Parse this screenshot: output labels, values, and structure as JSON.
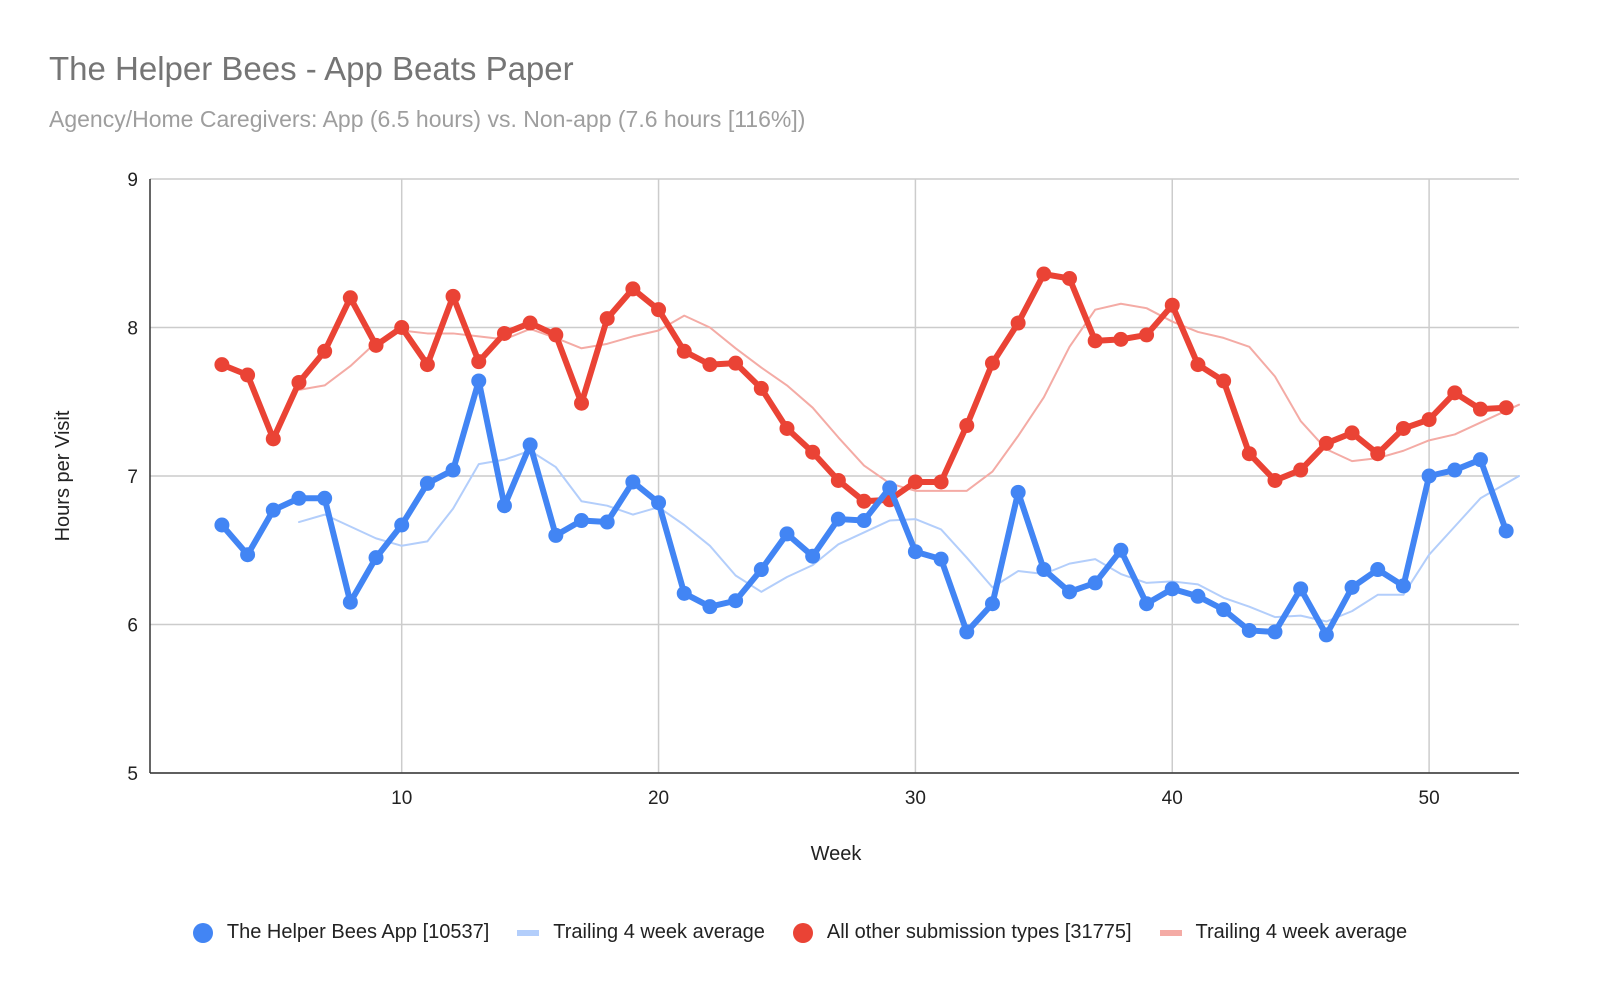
{
  "chart_data": {
    "type": "line",
    "title": "The Helper Bees - App Beats Paper",
    "subtitle": "Agency/Home Caregivers: App (6.5 hours) vs. Non-app (7.6 hours [116%])",
    "xlabel": "Week",
    "ylabel": "Hours per Visit",
    "xlim": [
      0.2,
      53.5
    ],
    "ylim": [
      5,
      9
    ],
    "x_ticks": [
      10,
      20,
      30,
      40,
      50
    ],
    "y_ticks": [
      5,
      6,
      7,
      8,
      9
    ],
    "grid": true,
    "legend_position": "bottom",
    "series": [
      {
        "name": "The Helper Bees App [10537]",
        "color": "#4285f4",
        "style": "line-markers",
        "x": [
          3,
          4,
          5,
          6,
          7,
          8,
          9,
          10,
          11,
          12,
          13,
          14,
          15,
          16,
          17,
          18,
          19,
          20,
          21,
          22,
          23,
          24,
          25,
          26,
          27,
          28,
          29,
          30,
          31,
          32,
          33,
          34,
          35,
          36,
          37,
          38,
          39,
          40,
          41,
          42,
          43,
          44,
          45,
          46,
          47,
          48,
          49,
          50,
          51,
          52,
          53
        ],
        "values": [
          6.67,
          6.47,
          6.77,
          6.85,
          6.85,
          6.15,
          6.45,
          6.67,
          6.95,
          7.04,
          7.64,
          6.8,
          7.21,
          6.6,
          6.7,
          6.69,
          6.96,
          6.82,
          6.21,
          6.12,
          6.16,
          6.37,
          6.61,
          6.46,
          6.71,
          6.7,
          6.92,
          6.49,
          6.44,
          5.95,
          6.14,
          6.89,
          6.37,
          6.22,
          6.28,
          6.5,
          6.14,
          6.24,
          6.19,
          6.1,
          5.96,
          5.95,
          6.24,
          5.93,
          6.25,
          6.37,
          6.26,
          7.0,
          7.04,
          7.11,
          6.63
        ]
      },
      {
        "name": "Trailing 4 week average",
        "color": "#b3cefb",
        "style": "line",
        "x": [
          6,
          7,
          8,
          9,
          10,
          11,
          12,
          13,
          14,
          15,
          16,
          17,
          18,
          19,
          20,
          21,
          22,
          23,
          24,
          25,
          26,
          27,
          28,
          29,
          30,
          31,
          32,
          33,
          34,
          35,
          36,
          37,
          38,
          39,
          40,
          41,
          42,
          43,
          44,
          45,
          46,
          47,
          48,
          49,
          50,
          51,
          52,
          53,
          53.5
        ],
        "values": [
          6.69,
          6.74,
          6.66,
          6.58,
          6.53,
          6.56,
          6.78,
          7.08,
          7.11,
          7.17,
          7.06,
          6.83,
          6.8,
          6.74,
          6.79,
          6.67,
          6.53,
          6.33,
          6.22,
          6.32,
          6.4,
          6.54,
          6.62,
          6.7,
          6.71,
          6.64,
          6.45,
          6.25,
          6.36,
          6.34,
          6.41,
          6.44,
          6.34,
          6.28,
          6.29,
          6.27,
          6.18,
          6.12,
          6.05,
          6.06,
          6.02,
          6.09,
          6.2,
          6.2,
          6.47,
          6.66,
          6.85,
          6.95,
          7.0
        ]
      },
      {
        "name": "All other submission types [31775]",
        "color": "#ea4335",
        "style": "line-markers",
        "x": [
          3,
          4,
          5,
          6,
          7,
          8,
          9,
          10,
          11,
          12,
          13,
          14,
          15,
          16,
          17,
          18,
          19,
          20,
          21,
          22,
          23,
          24,
          25,
          26,
          27,
          28,
          29,
          30,
          31,
          32,
          33,
          34,
          35,
          36,
          37,
          38,
          39,
          40,
          41,
          42,
          43,
          44,
          45,
          46,
          47,
          48,
          49,
          50,
          51,
          52,
          53
        ],
        "values": [
          7.75,
          7.68,
          7.25,
          7.63,
          7.84,
          8.2,
          7.88,
          8.0,
          7.75,
          8.21,
          7.77,
          7.96,
          8.03,
          7.95,
          7.49,
          8.06,
          8.26,
          8.12,
          7.84,
          7.75,
          7.76,
          7.59,
          7.32,
          7.16,
          6.97,
          6.83,
          6.84,
          6.96,
          6.96,
          7.34,
          7.76,
          8.03,
          8.36,
          8.33,
          7.91,
          7.92,
          7.95,
          8.15,
          7.75,
          7.64,
          7.15,
          6.97,
          7.04,
          7.22,
          7.29,
          7.15,
          7.32,
          7.38,
          7.56,
          7.45,
          7.46
        ]
      },
      {
        "name": "Trailing 4 week average",
        "color": "#f4aba5",
        "style": "line",
        "x": [
          6,
          7,
          8,
          9,
          10,
          11,
          12,
          13,
          14,
          15,
          16,
          17,
          18,
          19,
          20,
          21,
          22,
          23,
          24,
          25,
          26,
          27,
          28,
          29,
          30,
          31,
          32,
          33,
          34,
          35,
          36,
          37,
          38,
          39,
          40,
          41,
          42,
          43,
          44,
          45,
          46,
          47,
          48,
          49,
          50,
          51,
          52,
          53,
          53.5
        ],
        "values": [
          7.58,
          7.61,
          7.74,
          7.9,
          7.98,
          7.96,
          7.96,
          7.94,
          7.92,
          7.99,
          7.93,
          7.86,
          7.89,
          7.94,
          7.98,
          8.08,
          8.0,
          7.86,
          7.73,
          7.61,
          7.46,
          7.26,
          7.07,
          6.95,
          6.9,
          6.9,
          6.9,
          7.03,
          7.27,
          7.53,
          7.87,
          8.12,
          8.16,
          8.13,
          8.04,
          7.97,
          7.93,
          7.87,
          7.67,
          7.37,
          7.18,
          7.1,
          7.12,
          7.17,
          7.24,
          7.28,
          7.36,
          7.44,
          7.48
        ]
      }
    ]
  }
}
